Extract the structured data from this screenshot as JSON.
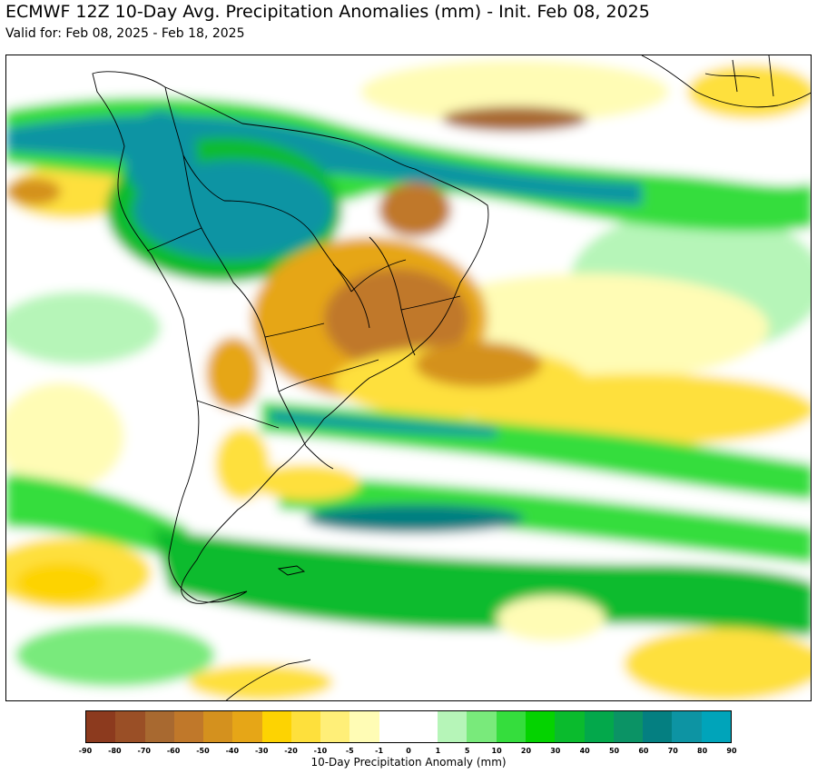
{
  "header": {
    "title": "ECMWF 12Z 10-Day Avg. Precipitation Anomalies (mm) - Init. Feb 08, 2025",
    "subtitle": "Valid for: Feb 08, 2025 - Feb 18, 2025"
  },
  "map": {
    "region": "South America and surrounding oceans",
    "show_country_borders": true
  },
  "colorbar": {
    "label": "10-Day Precipitation Anomaly (mm)",
    "tick_labels": [
      "-90",
      "-80",
      "-70",
      "-60",
      "-50",
      "-40",
      "-30",
      "-20",
      "-10",
      "-5",
      "-1",
      "0",
      "1",
      "5",
      "10",
      "20",
      "30",
      "40",
      "50",
      "60",
      "70",
      "80",
      "90"
    ],
    "colors": [
      "#8c3a1e",
      "#9a4f26",
      "#a86930",
      "#c0782a",
      "#d4911e",
      "#e6a617",
      "#fdd302",
      "#fee03c",
      "#ffef78",
      "#fffcb5",
      "#ffffff",
      "#ffffff",
      "#b6f5b8",
      "#79ea7b",
      "#35dd3d",
      "#04d300",
      "#0abb2d",
      "#03a84b",
      "#0b9365",
      "#047f81",
      "#0d94a3",
      "#00a4ba"
    ]
  }
}
